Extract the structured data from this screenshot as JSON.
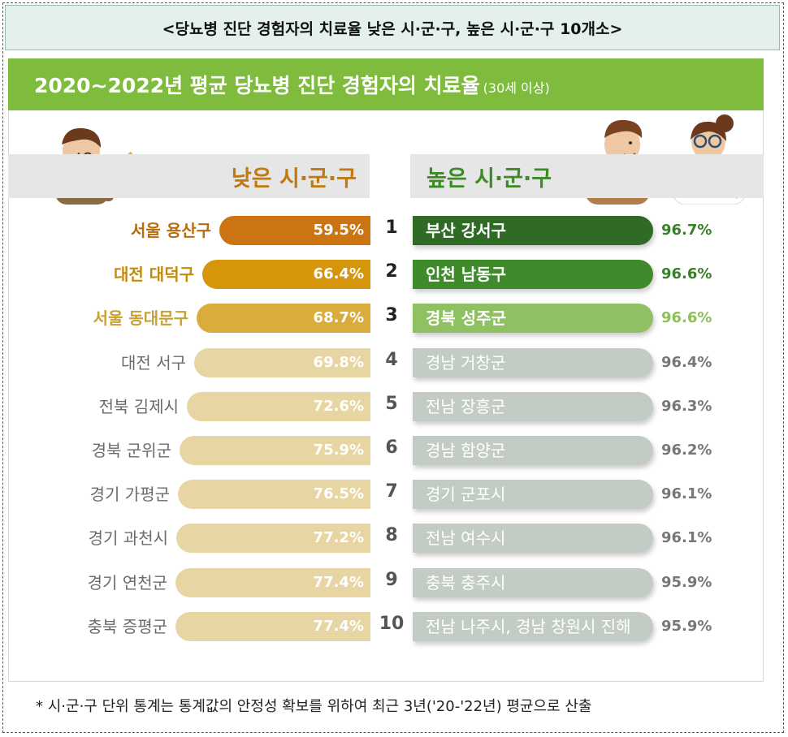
{
  "header": {
    "title": "<당뇨병 진단 경험자의 치료율 낮은 시·군·구, 높은 시·군·구 10개소>"
  },
  "banner": {
    "title": "2020~2022년 평균 당뇨병 진단 경험자의 치료율",
    "subtitle": "(30세 이상)"
  },
  "columns": {
    "low_title": "낮은 시·군·구",
    "high_title": "높은 시·군·구"
  },
  "chart_data": {
    "type": "bar",
    "title": "2020~2022년 평균 당뇨병 진단 경험자의 치료율(30세 이상)",
    "unit": "%",
    "ranks": [
      "1",
      "2",
      "3",
      "4",
      "5",
      "6",
      "7",
      "8",
      "9",
      "10"
    ],
    "series": [
      {
        "name": "낮은 시·군·구",
        "categories": [
          "서울 용산구",
          "대전 대덕구",
          "서울 동대문구",
          "대전 서구",
          "전북 김제시",
          "경북 군위군",
          "경기 가평군",
          "경기 과천시",
          "경기 연천군",
          "충북 증평군"
        ],
        "values": [
          59.5,
          66.4,
          68.7,
          69.8,
          72.6,
          75.9,
          76.5,
          77.2,
          77.4,
          77.4
        ],
        "value_labels": [
          "59.5%",
          "66.4%",
          "68.7%",
          "69.8%",
          "72.6%",
          "75.9%",
          "76.5%",
          "77.2%",
          "77.4%",
          "77.4%"
        ]
      },
      {
        "name": "높은 시·군·구",
        "categories": [
          "부산 강서구",
          "인천 남동구",
          "경북 성주군",
          "경남 거창군",
          "전남 장흥군",
          "경남 함양군",
          "경기 군포시",
          "전남 여수시",
          "충북 충주시",
          "전남 나주시, 경남 창원시 진해"
        ],
        "values": [
          96.7,
          96.6,
          96.6,
          96.4,
          96.3,
          96.2,
          96.1,
          96.1,
          95.9,
          95.9
        ],
        "value_labels": [
          "96.7%",
          "96.6%",
          "96.6%",
          "96.4%",
          "96.3%",
          "96.2%",
          "96.1%",
          "96.1%",
          "95.9%",
          "95.9%"
        ]
      }
    ]
  },
  "colors": {
    "low_bars": [
      "#cc7412",
      "#d6960c",
      "#d9ac3c",
      "#e7d6a3"
    ],
    "high_bars": [
      "#2f6b24",
      "#3f8a2a",
      "#8fc062",
      "#c3ccc4"
    ],
    "low_labels": [
      "#b86c10",
      "#c58a0c",
      "#c9a133",
      "#6b6b6b"
    ],
    "high_values": [
      "#3a7f2a",
      "#3a7f2a",
      "#8dbf5a",
      "#777777"
    ]
  },
  "footnote": "*  시·군·구 단위 통계는 통계값의 안정성 확보를 위하여 최근 3년('20-'22년) 평균으로 산출"
}
